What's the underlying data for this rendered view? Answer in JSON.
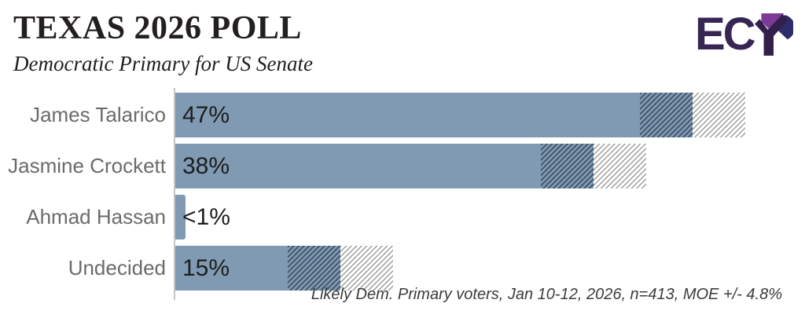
{
  "header": {
    "title": "TEXAS 2026 POLL",
    "subtitle": "Democratic Primary for US Senate"
  },
  "logo": {
    "text": "EC",
    "name": "ECP",
    "colors": {
      "letters": "#372554",
      "wedge_purple": "#7c3a97",
      "wedge_navy": "#2f2c6c",
      "mark_dark": "#32204a"
    }
  },
  "footer": {
    "note": "Likely Dem. Primary voters, Jan 10-12, 2026, n=413, MOE +/- 4.8%"
  },
  "chart_data": {
    "type": "bar",
    "orientation": "horizontal",
    "title": "TEXAS 2026 POLL",
    "subtitle": "Democratic Primary for US Senate",
    "categories": [
      "James Talarico",
      "Jasmine Crockett",
      "Ahmad Hassan",
      "Undecided"
    ],
    "values": [
      47,
      38,
      0.9,
      15
    ],
    "value_labels": [
      "47%",
      "38%",
      "<1%",
      "15%"
    ],
    "moe_percent": 4.8,
    "moe_shown": [
      true,
      true,
      false,
      true
    ],
    "xlim": [
      0,
      57
    ],
    "grid": false,
    "legend": false,
    "bar_color": "#7f9ab2",
    "moe_lower_style": "dark-hatch-on-bar",
    "moe_upper_style": "gray-hatch-on-white",
    "axis_color": "#c2c6cb",
    "label_color": "#6b6b6b",
    "value_color": "#1d1d1d",
    "source_note": "Likely Dem. Primary voters, Jan 10-12, 2026, n=413, MOE +/- 4.8%"
  }
}
